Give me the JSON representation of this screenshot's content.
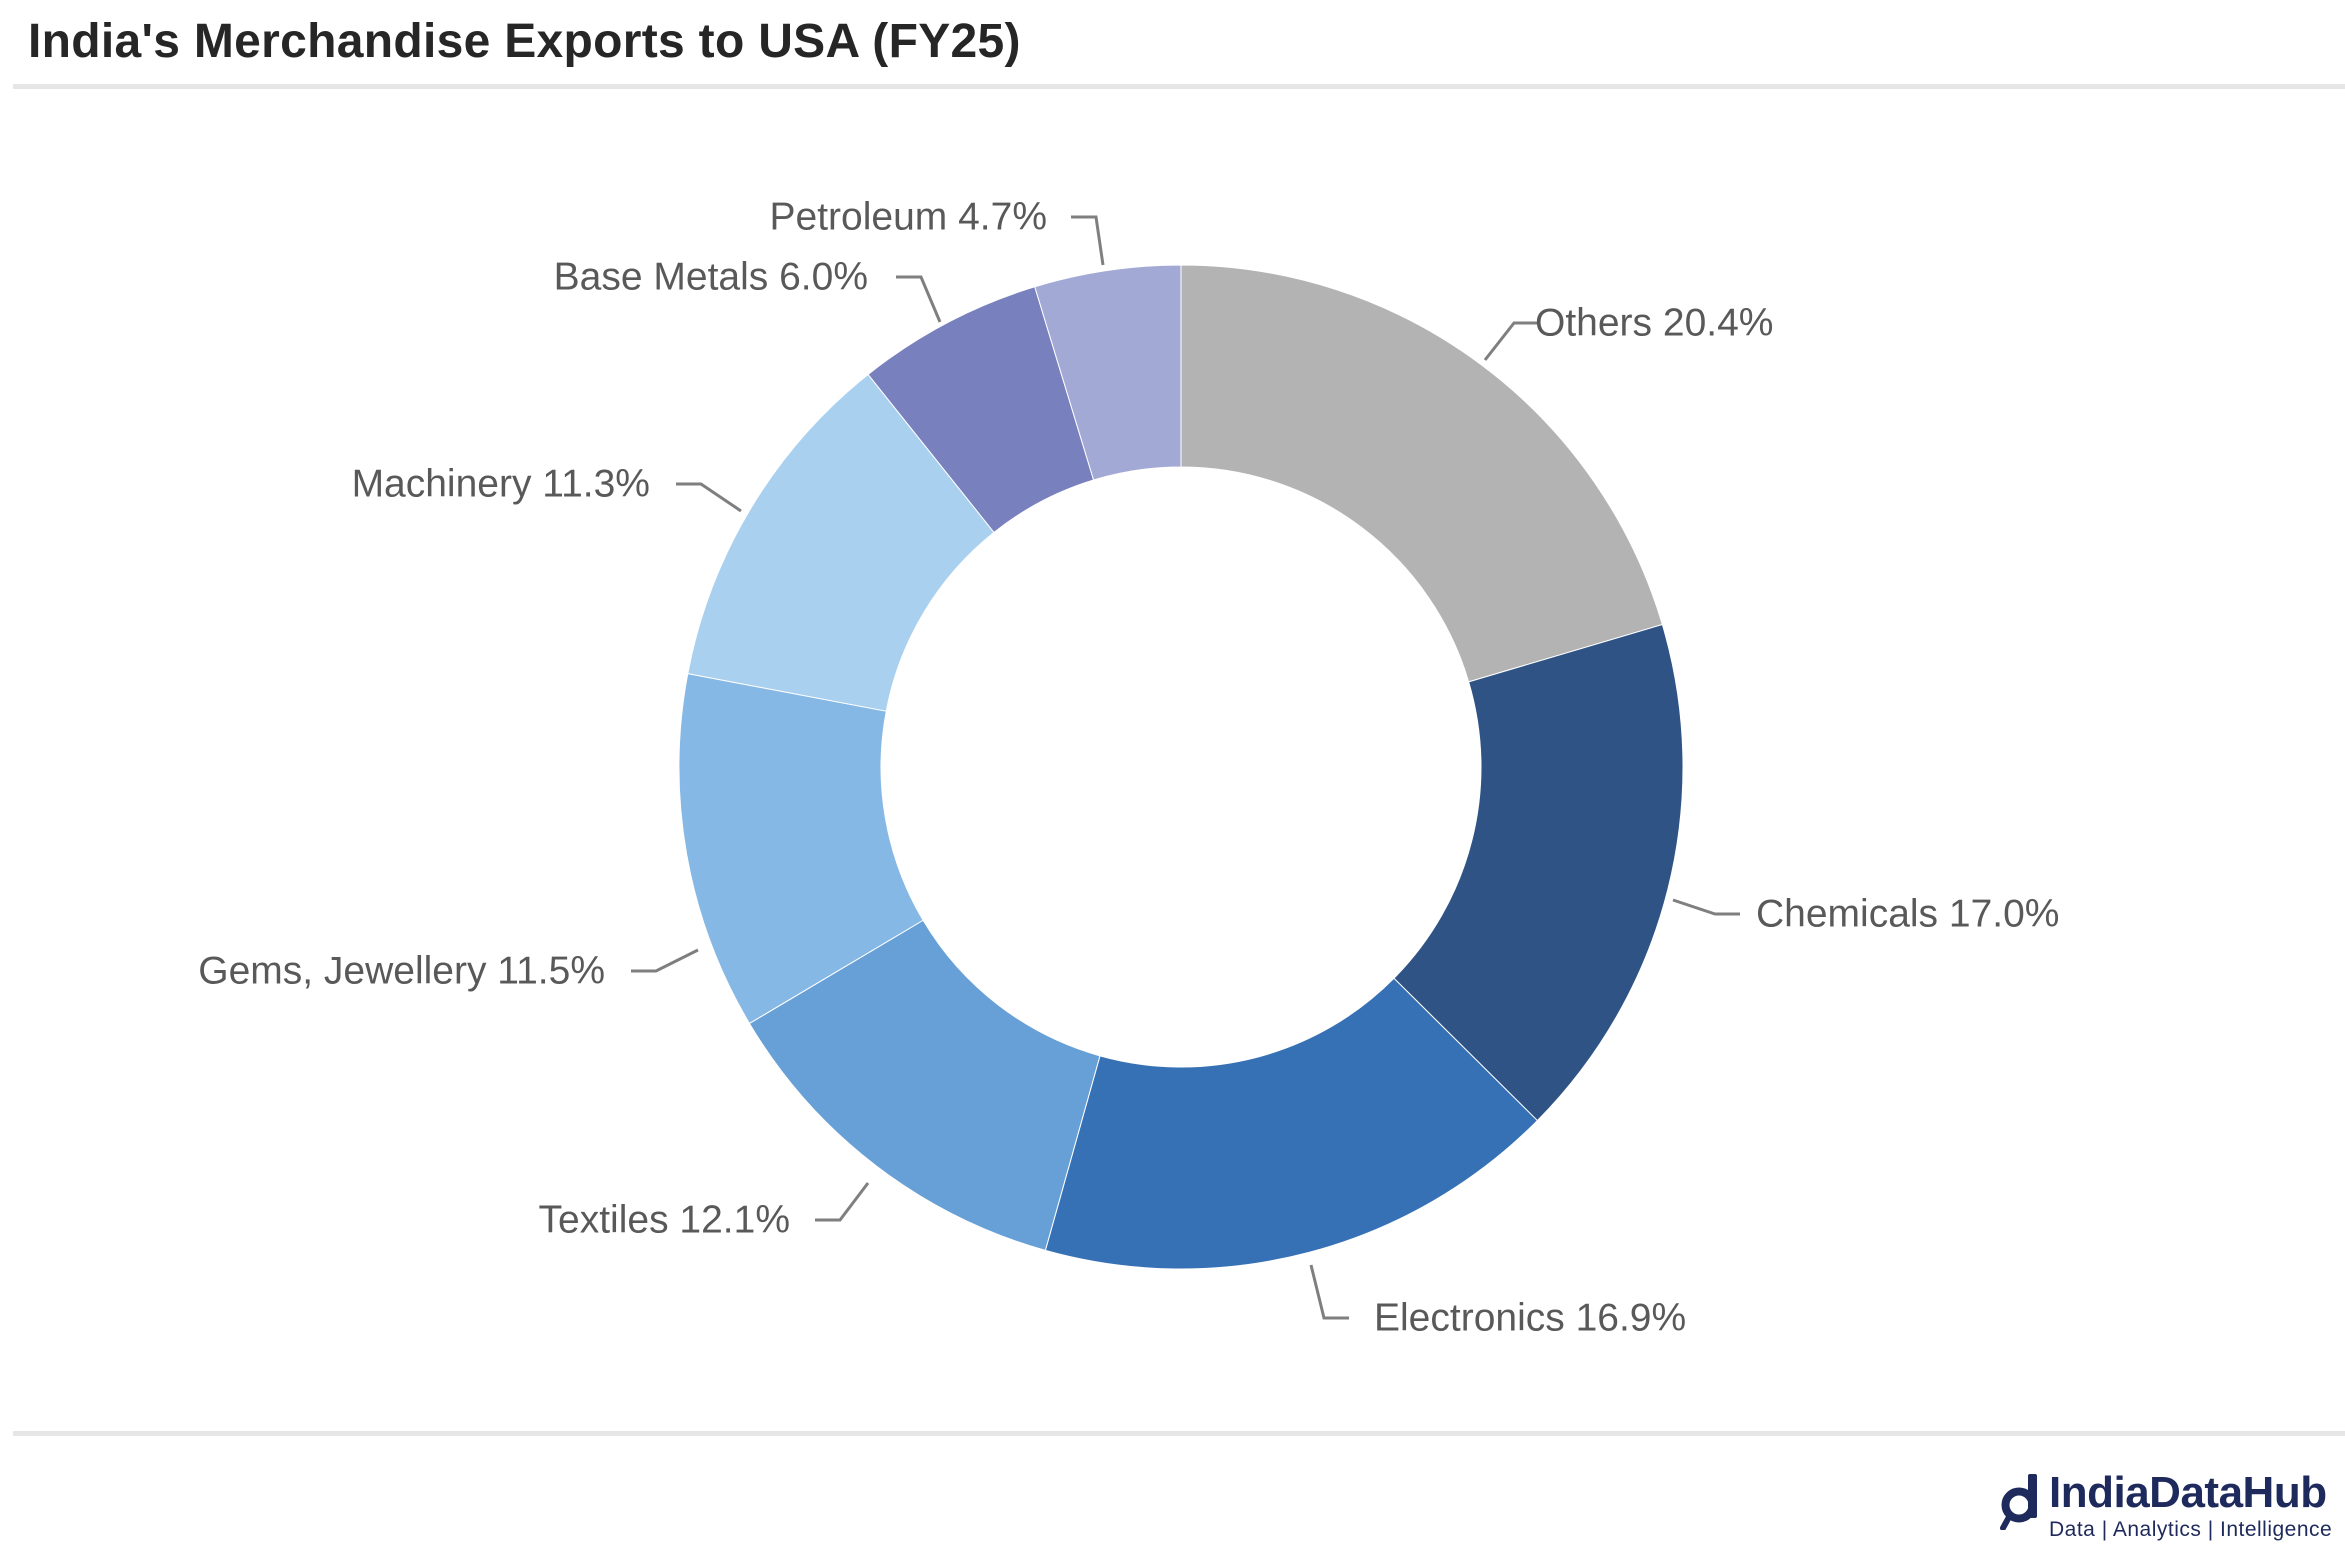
{
  "title": "India's Merchandise Exports to USA (FY25)",
  "chart_data": {
    "type": "pie",
    "subtype": "donut",
    "title": "India's Merchandise Exports to USA (FY25)",
    "categories": [
      "Others",
      "Chemicals",
      "Electronics",
      "Textiles",
      "Gems, Jewellery",
      "Machinery",
      "Base Metals",
      "Petroleum"
    ],
    "values": [
      20.4,
      17.0,
      16.9,
      12.1,
      11.5,
      11.3,
      6.0,
      4.7
    ],
    "labels": [
      "Others 20.4%",
      "Chemicals 17.0%",
      "Electronics 16.9%",
      "Textiles 12.1%",
      "Gems, Jewellery 11.5%",
      "Machinery 11.3%",
      "Base Metals 6.0%",
      "Petroleum 4.7%"
    ],
    "colors": [
      "#b3b3b3",
      "#2e5384",
      "#3670b5",
      "#67a0d6",
      "#85b8e4",
      "#aad0f0",
      "#7880bd",
      "#a3a9d5"
    ],
    "unit": "%",
    "start": "12 o'clock, clockwise"
  },
  "brand": {
    "name": "IndiaDataHub",
    "tagline": "Data | Analytics | Intelligence",
    "color": "#1f2a5c"
  }
}
